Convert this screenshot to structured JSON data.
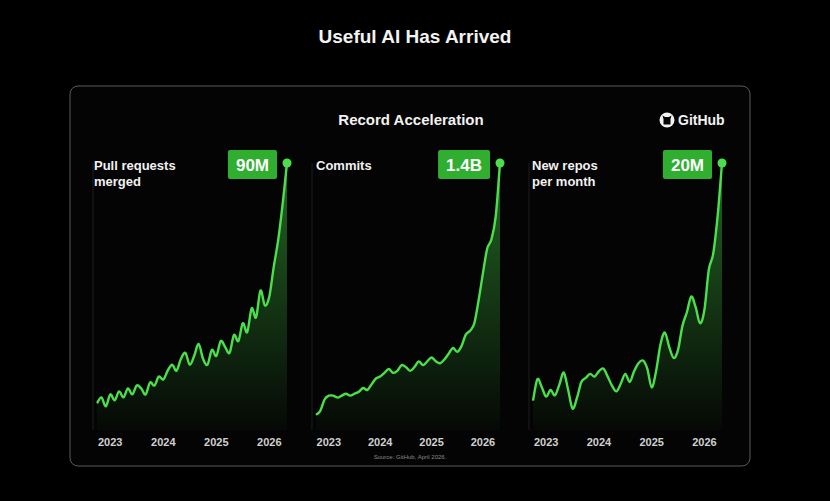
{
  "title": "Useful AI Has Arrived",
  "subtitle": "Record Acceleration",
  "brand": "GitHub",
  "source": "Source: GitHub, April 2026.",
  "chart_data": [
    {
      "type": "area",
      "title": "Pull requests merged",
      "annotation": "90M",
      "color": "#4be04b",
      "tick_labels": "x",
      "categories": [
        null,
        null,
        null,
        "2023",
        null,
        null,
        null,
        null,
        null,
        null,
        null,
        null,
        null,
        null,
        null,
        "2024",
        null,
        null,
        null,
        null,
        null,
        null,
        null,
        null,
        null,
        null,
        null,
        "2025",
        null,
        null,
        null,
        null,
        null,
        null,
        null,
        null,
        null,
        null,
        null,
        "2026",
        null,
        null,
        null,
        null
      ],
      "values": [
        9,
        11,
        8,
        12,
        10,
        13,
        11,
        14,
        12,
        15,
        14,
        12,
        16,
        15,
        18,
        17,
        20,
        22,
        20,
        24,
        26,
        22,
        25,
        29,
        24,
        22,
        27,
        25,
        30,
        28,
        26,
        32,
        30,
        36,
        33,
        41,
        38,
        47,
        42,
        45,
        55,
        64,
        76,
        90
      ],
      "ylim": [
        0,
        90
      ]
    },
    {
      "type": "area",
      "title": "Commits",
      "annotation": "1.4B",
      "color": "#4be04b",
      "tick_labels": "x",
      "categories": [
        null,
        null,
        null,
        "2023",
        null,
        null,
        null,
        null,
        null,
        null,
        null,
        null,
        null,
        null,
        null,
        "2024",
        null,
        null,
        null,
        null,
        null,
        null,
        null,
        null,
        null,
        null,
        null,
        "2025",
        null,
        null,
        null,
        null,
        null,
        null,
        null,
        null,
        null,
        null,
        null,
        "2026",
        null,
        null,
        null,
        null
      ],
      "values": [
        0.08,
        0.1,
        0.16,
        0.18,
        0.18,
        0.17,
        0.18,
        0.19,
        0.18,
        0.19,
        0.2,
        0.22,
        0.21,
        0.24,
        0.27,
        0.28,
        0.3,
        0.32,
        0.3,
        0.31,
        0.34,
        0.33,
        0.31,
        0.33,
        0.36,
        0.34,
        0.36,
        0.38,
        0.36,
        0.35,
        0.37,
        0.4,
        0.43,
        0.41,
        0.44,
        0.5,
        0.52,
        0.56,
        0.68,
        0.82,
        0.95,
        1.0,
        1.12,
        1.4
      ],
      "ylim": [
        0,
        1.4
      ]
    },
    {
      "type": "area",
      "title": "New repos per month",
      "annotation": "20M",
      "color": "#4be04b",
      "tick_labels": "x",
      "categories": [
        null,
        null,
        null,
        "2023",
        null,
        null,
        null,
        null,
        null,
        null,
        null,
        null,
        null,
        null,
        null,
        "2024",
        null,
        null,
        null,
        null,
        null,
        null,
        null,
        null,
        null,
        null,
        null,
        "2025",
        null,
        null,
        null,
        null,
        null,
        null,
        null,
        null,
        null,
        null,
        null,
        "2026",
        null,
        null,
        null,
        null
      ],
      "values": [
        2.2,
        3.8,
        3.2,
        2.5,
        3.0,
        2.6,
        3.4,
        4.3,
        3.0,
        1.6,
        2.4,
        3.6,
        3.9,
        4.2,
        4.0,
        4.4,
        4.6,
        4.0,
        3.3,
        2.9,
        3.5,
        4.2,
        3.6,
        4.4,
        5.0,
        5.2,
        4.6,
        3.2,
        4.4,
        6.4,
        7.3,
        6.2,
        5.4,
        6.0,
        7.8,
        8.8,
        10.0,
        9.2,
        8.0,
        9.0,
        12.0,
        13.2,
        16.0,
        20
      ],
      "ylim": [
        0,
        20
      ]
    }
  ]
}
